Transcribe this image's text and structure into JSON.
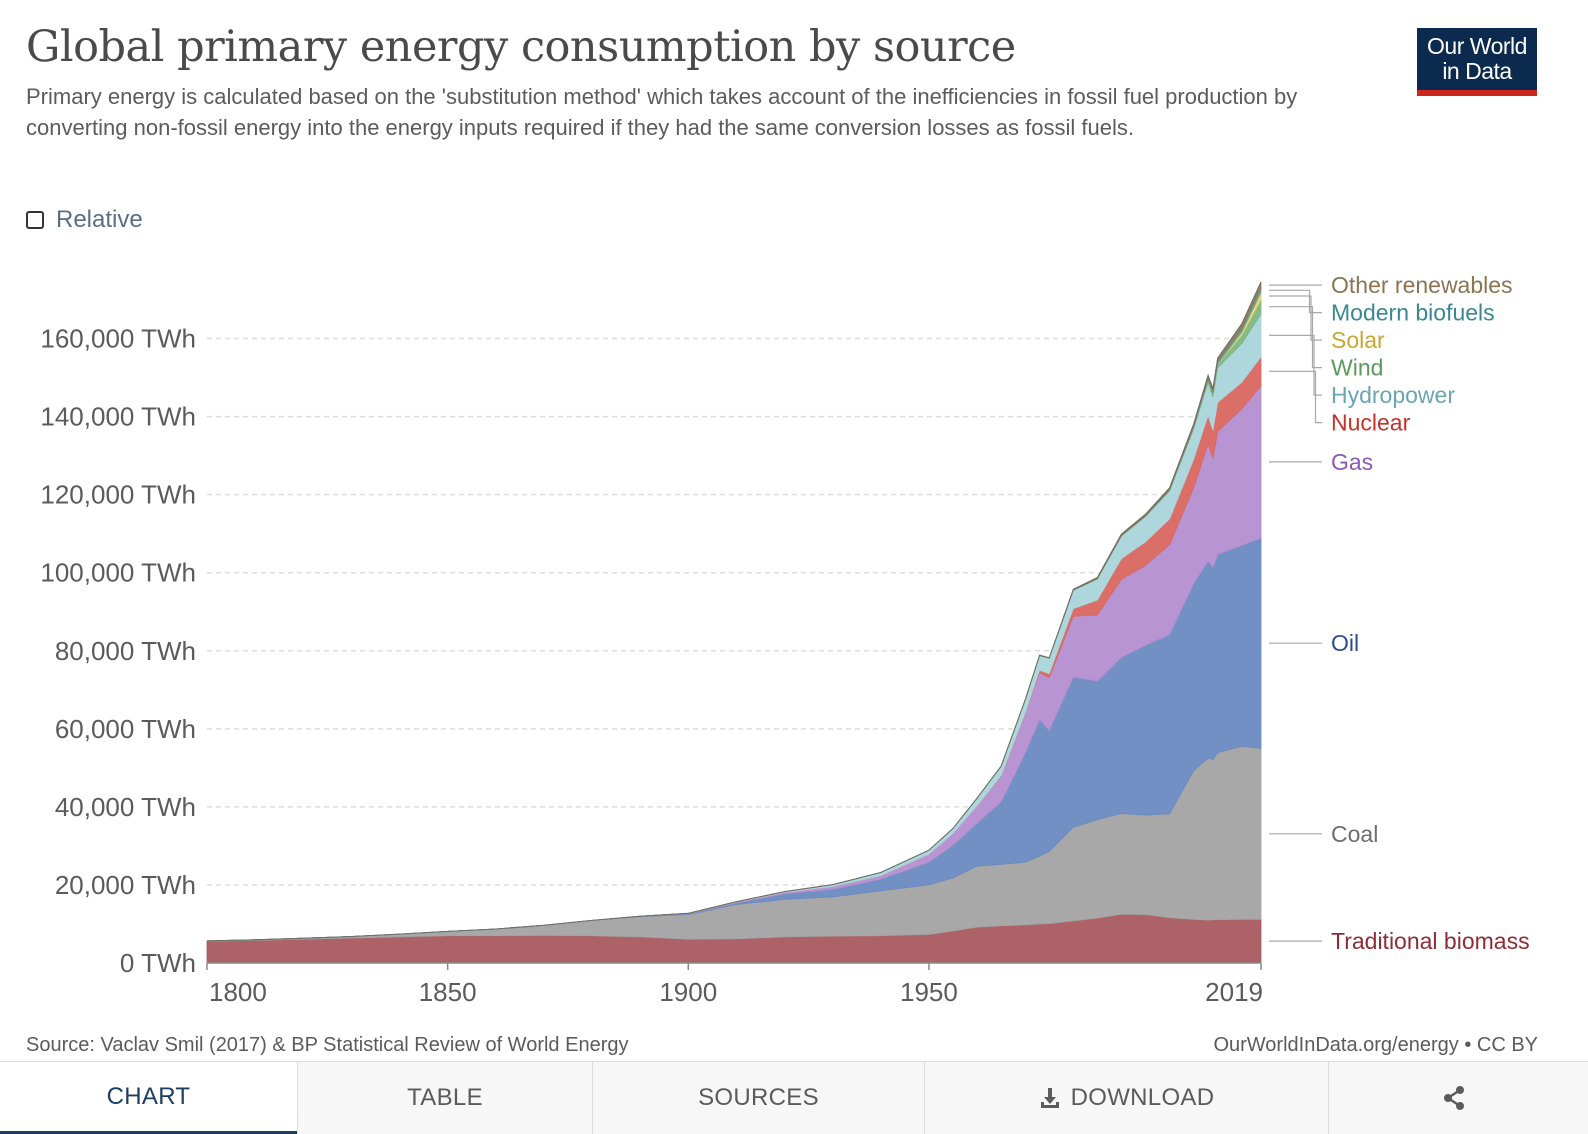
{
  "header": {
    "title": "Global primary energy consumption by source",
    "subtitle": "Primary energy is calculated based on the 'substitution method' which takes account of the inefficiencies in fossil fuel production by converting non-fossil energy into the energy inputs required if they had the same conversion losses as fossil fuels.",
    "logo_line1": "Our World",
    "logo_line2": "in Data"
  },
  "controls": {
    "relative_label": "Relative",
    "relative_checked": false
  },
  "footer": {
    "source": "Source: Vaclav Smil (2017) & BP Statistical Review of World Energy",
    "license": "OurWorldInData.org/energy • CC BY"
  },
  "tabs": [
    {
      "label": "CHART",
      "icon": ""
    },
    {
      "label": "TABLE",
      "icon": ""
    },
    {
      "label": "SOURCES",
      "icon": ""
    },
    {
      "label": "DOWNLOAD",
      "icon": "download-icon"
    },
    {
      "label": "",
      "icon": "share-icon"
    }
  ],
  "chart_data": {
    "type": "area",
    "stacked": true,
    "x_ticks": [
      "1800",
      "1850",
      "1900",
      "1950",
      "2019"
    ],
    "y_ticks": [
      "0 TWh",
      "20,000 TWh",
      "40,000 TWh",
      "60,000 TWh",
      "80,000 TWh",
      "100,000 TWh",
      "120,000 TWh",
      "140,000 TWh",
      "160,000 TWh"
    ],
    "xlim": [
      1800,
      2019
    ],
    "ylim": [
      0,
      175000
    ],
    "grid": "horizontal-dashed",
    "legend_placement": "right",
    "x": [
      1800,
      1810,
      1820,
      1830,
      1840,
      1850,
      1860,
      1870,
      1880,
      1890,
      1900,
      1910,
      1920,
      1930,
      1940,
      1950,
      1955,
      1960,
      1965,
      1970,
      1973,
      1975,
      1980,
      1985,
      1990,
      1995,
      2000,
      2005,
      2008,
      2009,
      2010,
      2015,
      2019
    ],
    "series": [
      {
        "name": "Traditional biomass",
        "color": "#a85a5e",
        "label_color": "#8c2d35",
        "values": [
          5550,
          5800,
          6100,
          6400,
          6700,
          7000,
          7000,
          7050,
          7000,
          6700,
          6100,
          6200,
          6700,
          6900,
          7000,
          7300,
          8200,
          9200,
          9500,
          9800,
          10000,
          10100,
          10800,
          11500,
          12500,
          12400,
          11600,
          11200,
          11000,
          11100,
          11100,
          11200,
          11200
        ]
      },
      {
        "name": "Coal",
        "color": "#a3a3a3",
        "label_color": "#6e6e6e",
        "values": [
          100,
          150,
          250,
          400,
          700,
          1100,
          1700,
          2600,
          3900,
          5200,
          6300,
          8800,
          9600,
          10000,
          11500,
          12700,
          13600,
          15600,
          15800,
          16000,
          17400,
          18500,
          24000,
          25200,
          25800,
          25500,
          26600,
          38000,
          41500,
          41000,
          42800,
          44300,
          43800
        ]
      },
      {
        "name": "Oil",
        "color": "#6b8ac1",
        "label_color": "#2d4e8a",
        "values": [
          0,
          0,
          0,
          0,
          0,
          0,
          0,
          10,
          20,
          50,
          200,
          400,
          1400,
          2000,
          3000,
          5800,
          8400,
          11000,
          16000,
          28000,
          35000,
          31000,
          38500,
          35500,
          40000,
          43500,
          46000,
          48000,
          50500,
          49200,
          50800,
          51500,
          53900
        ]
      },
      {
        "name": "Gas",
        "color": "#b58ed0",
        "label_color": "#8a5ab8",
        "values": [
          0,
          0,
          0,
          0,
          0,
          0,
          0,
          0,
          0,
          50,
          120,
          200,
          400,
          700,
          900,
          2100,
          3000,
          4500,
          6600,
          10000,
          12000,
          13500,
          15500,
          17000,
          20000,
          20500,
          23000,
          24500,
          30000,
          28000,
          31500,
          35000,
          39000
        ]
      },
      {
        "name": "Nuclear",
        "color": "#d9665f",
        "label_color": "#c72f2a",
        "values": [
          0,
          0,
          0,
          0,
          0,
          0,
          0,
          0,
          0,
          0,
          0,
          0,
          0,
          0,
          0,
          0,
          0,
          10,
          100,
          200,
          600,
          1000,
          2000,
          3800,
          5300,
          6000,
          6600,
          7300,
          7300,
          7200,
          7400,
          6800,
          7400
        ]
      },
      {
        "name": "Hydropower",
        "color": "#a9d5da",
        "label_color": "#6aa5b4",
        "values": [
          0,
          0,
          0,
          0,
          0,
          0,
          0,
          0,
          0,
          0,
          20,
          100,
          200,
          500,
          800,
          1000,
          1300,
          1900,
          2400,
          3400,
          3800,
          4000,
          4700,
          5400,
          5800,
          6500,
          7200,
          7800,
          8400,
          8500,
          8900,
          9900,
          11000
        ]
      },
      {
        "name": "Wind",
        "color": "#7fb77f",
        "label_color": "#5a9a5a",
        "values": [
          0,
          0,
          0,
          0,
          0,
          0,
          0,
          0,
          0,
          0,
          0,
          0,
          0,
          0,
          0,
          0,
          0,
          0,
          0,
          0,
          0,
          0,
          0,
          0,
          10,
          20,
          80,
          280,
          560,
          720,
          900,
          2200,
          3700
        ]
      },
      {
        "name": "Solar",
        "color": "#e8d36a",
        "label_color": "#c9a830",
        "values": [
          0,
          0,
          0,
          0,
          0,
          0,
          0,
          0,
          0,
          0,
          0,
          0,
          0,
          0,
          0,
          0,
          0,
          0,
          0,
          0,
          0,
          0,
          0,
          0,
          0,
          0,
          5,
          20,
          40,
          60,
          100,
          700,
          1800
        ]
      },
      {
        "name": "Modern biofuels",
        "color": "#5fa3a8",
        "label_color": "#3a8793",
        "values": [
          0,
          0,
          0,
          0,
          0,
          0,
          0,
          0,
          0,
          0,
          0,
          0,
          0,
          0,
          0,
          0,
          0,
          0,
          0,
          0,
          0,
          0,
          20,
          80,
          130,
          150,
          150,
          300,
          530,
          580,
          620,
          850,
          1100
        ]
      },
      {
        "name": "Other renewables",
        "color": "#8b7a52",
        "label_color": "#8b7452",
        "values": [
          0,
          0,
          0,
          0,
          0,
          0,
          0,
          0,
          0,
          0,
          0,
          0,
          0,
          0,
          0,
          0,
          0,
          10,
          20,
          50,
          80,
          100,
          200,
          300,
          360,
          420,
          520,
          650,
          750,
          800,
          880,
          1300,
          1600
        ]
      }
    ]
  }
}
